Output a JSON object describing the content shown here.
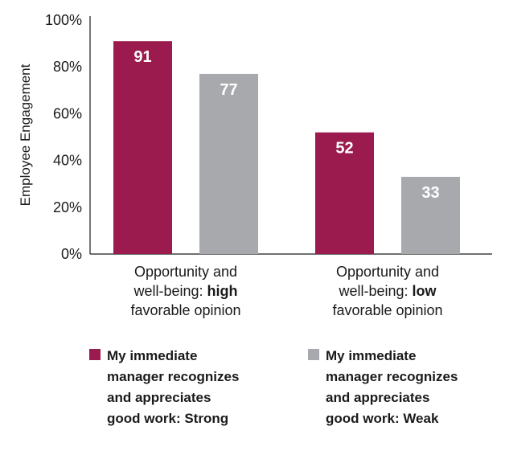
{
  "chart_data": {
    "type": "bar",
    "title": "",
    "ylabel": "Employee Engagement",
    "xlabel": "",
    "ylim": [
      0,
      100
    ],
    "yticks": [
      "0%",
      "20%",
      "40%",
      "60%",
      "80%",
      "100%"
    ],
    "grid": false,
    "categories": [
      {
        "lines": [
          [
            {
              "t": "Opportunity and",
              "b": false
            }
          ],
          [
            {
              "t": "well-being: ",
              "b": false
            },
            {
              "t": "high",
              "b": true
            }
          ],
          [
            {
              "t": "favorable opinion",
              "b": false
            }
          ]
        ]
      },
      {
        "lines": [
          [
            {
              "t": "Opportunity and",
              "b": false
            }
          ],
          [
            {
              "t": "well-being: ",
              "b": false
            },
            {
              "t": "low",
              "b": true
            }
          ],
          [
            {
              "t": "favorable opinion",
              "b": false
            }
          ]
        ]
      }
    ],
    "series": [
      {
        "name": "My immediate manager recognizes and appreciates good work: Strong",
        "name_lines": [
          "My immediate",
          "manager recognizes",
          "and appreciates",
          "good work: Strong"
        ],
        "color": "#9b1b4f",
        "values": [
          91,
          52
        ]
      },
      {
        "name": "My immediate manager recognizes and appreciates good work: Weak",
        "name_lines": [
          "My immediate",
          "manager recognizes",
          "and appreciates",
          "good work: Weak"
        ],
        "color": "#a7a9ac",
        "values": [
          77,
          33
        ]
      }
    ],
    "legend_position": "bottom"
  }
}
